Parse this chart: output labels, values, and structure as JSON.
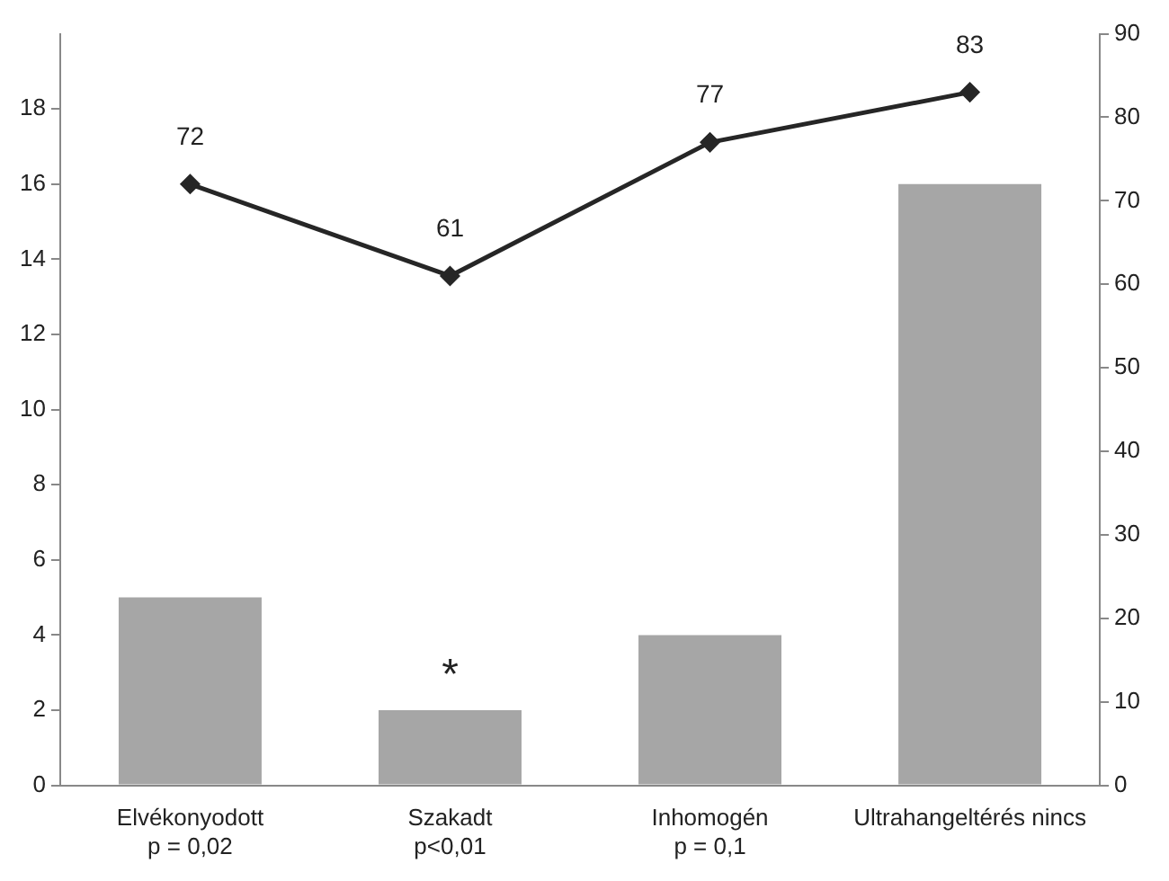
{
  "chart_data": {
    "type": "bar",
    "categories": [
      "Elvékonyodott\np = 0,02",
      "Szakadt\np<0,01",
      "Inhomogén\np = 0,1",
      "Ultrahangeltérés nincs"
    ],
    "series": [
      {
        "color": "#a6a6a6",
        "values": [
          5,
          2,
          4,
          16
        ]
      },
      {
        "type": "line",
        "axis": "y2",
        "color": "#262626",
        "values": [
          72,
          61,
          77,
          83
        ],
        "value_labels": [
          "72",
          "61",
          "77",
          "83"
        ]
      }
    ],
    "ylim": [
      0,
      20
    ],
    "yticks": [
      0,
      2,
      4,
      6,
      8,
      10,
      12,
      14,
      16,
      18
    ],
    "y2lim": [
      0,
      90
    ],
    "y2ticks": [
      0,
      10,
      20,
      30,
      40,
      50,
      60,
      70,
      80,
      90
    ],
    "annotations": [
      {
        "text": "*",
        "x": "Szakadt\np<0,01",
        "y": 2
      }
    ],
    "grid": false,
    "legend": false,
    "marker": "diamond",
    "line_style": "solid"
  }
}
